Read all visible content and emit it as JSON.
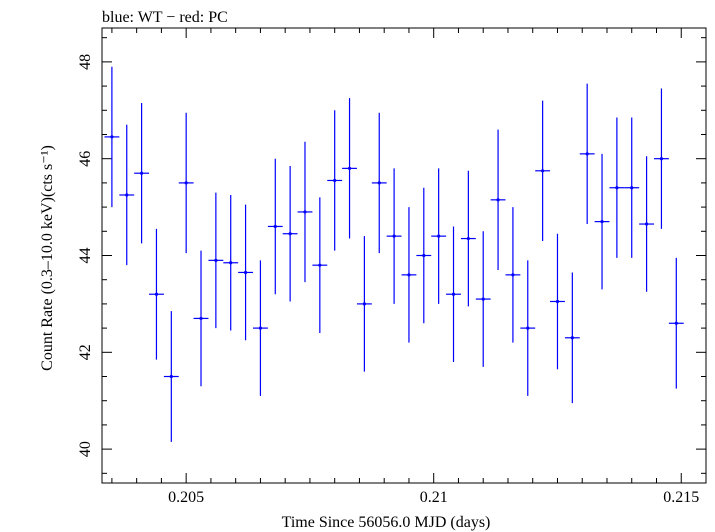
{
  "chart_data": {
    "type": "scatter",
    "title": "blue: WT − red: PC",
    "xlabel": "Time Since 56056.0 MJD (days)",
    "ylabel": "Count Rate (0.3–10.0 keV)(cts s⁻¹)",
    "xlim": [
      0.2033,
      0.2155
    ],
    "ylim": [
      39.3,
      48.7
    ],
    "xticks": [
      0.205,
      0.21,
      0.215
    ],
    "xtick_labels": [
      "0.205",
      "0.21",
      "0.215"
    ],
    "yticks": [
      40,
      42,
      44,
      46,
      48
    ],
    "ytick_labels": [
      "40",
      "42",
      "44",
      "46",
      "48"
    ],
    "series": [
      {
        "color": "#0000ff",
        "xerr": 0.00015,
        "points": [
          {
            "x": 0.2035,
            "y": 46.45,
            "yerr": 1.45
          },
          {
            "x": 0.2038,
            "y": 45.25,
            "yerr": 1.45
          },
          {
            "x": 0.2041,
            "y": 45.7,
            "yerr": 1.45
          },
          {
            "x": 0.2044,
            "y": 43.2,
            "yerr": 1.35
          },
          {
            "x": 0.2047,
            "y": 41.5,
            "yerr": 1.35
          },
          {
            "x": 0.205,
            "y": 45.5,
            "yerr": 1.45
          },
          {
            "x": 0.2053,
            "y": 42.7,
            "yerr": 1.4
          },
          {
            "x": 0.2056,
            "y": 43.9,
            "yerr": 1.4
          },
          {
            "x": 0.2059,
            "y": 43.85,
            "yerr": 1.4
          },
          {
            "x": 0.2062,
            "y": 43.65,
            "yerr": 1.4
          },
          {
            "x": 0.2065,
            "y": 42.5,
            "yerr": 1.4
          },
          {
            "x": 0.2068,
            "y": 44.6,
            "yerr": 1.4
          },
          {
            "x": 0.2071,
            "y": 44.45,
            "yerr": 1.4
          },
          {
            "x": 0.2074,
            "y": 44.9,
            "yerr": 1.45
          },
          {
            "x": 0.2077,
            "y": 43.8,
            "yerr": 1.4
          },
          {
            "x": 0.208,
            "y": 45.55,
            "yerr": 1.45
          },
          {
            "x": 0.2083,
            "y": 45.8,
            "yerr": 1.45
          },
          {
            "x": 0.2086,
            "y": 43.0,
            "yerr": 1.4
          },
          {
            "x": 0.2089,
            "y": 45.5,
            "yerr": 1.45
          },
          {
            "x": 0.2092,
            "y": 44.4,
            "yerr": 1.4
          },
          {
            "x": 0.2095,
            "y": 43.6,
            "yerr": 1.4
          },
          {
            "x": 0.2098,
            "y": 44.0,
            "yerr": 1.4
          },
          {
            "x": 0.2101,
            "y": 44.4,
            "yerr": 1.4
          },
          {
            "x": 0.2104,
            "y": 43.2,
            "yerr": 1.4
          },
          {
            "x": 0.2107,
            "y": 44.35,
            "yerr": 1.4
          },
          {
            "x": 0.211,
            "y": 43.1,
            "yerr": 1.4
          },
          {
            "x": 0.2113,
            "y": 45.15,
            "yerr": 1.45
          },
          {
            "x": 0.2116,
            "y": 43.6,
            "yerr": 1.4
          },
          {
            "x": 0.2119,
            "y": 42.5,
            "yerr": 1.4
          },
          {
            "x": 0.2122,
            "y": 45.75,
            "yerr": 1.45
          },
          {
            "x": 0.2125,
            "y": 43.05,
            "yerr": 1.4
          },
          {
            "x": 0.2128,
            "y": 42.3,
            "yerr": 1.35
          },
          {
            "x": 0.2131,
            "y": 46.1,
            "yerr": 1.45
          },
          {
            "x": 0.2134,
            "y": 44.7,
            "yerr": 1.4
          },
          {
            "x": 0.2137,
            "y": 45.4,
            "yerr": 1.45
          },
          {
            "x": 0.214,
            "y": 45.4,
            "yerr": 1.45
          },
          {
            "x": 0.2143,
            "y": 44.65,
            "yerr": 1.4
          },
          {
            "x": 0.2146,
            "y": 46.0,
            "yerr": 1.45
          },
          {
            "x": 0.2149,
            "y": 42.6,
            "yerr": 1.35
          }
        ]
      }
    ],
    "grid": false,
    "legend": "none"
  }
}
